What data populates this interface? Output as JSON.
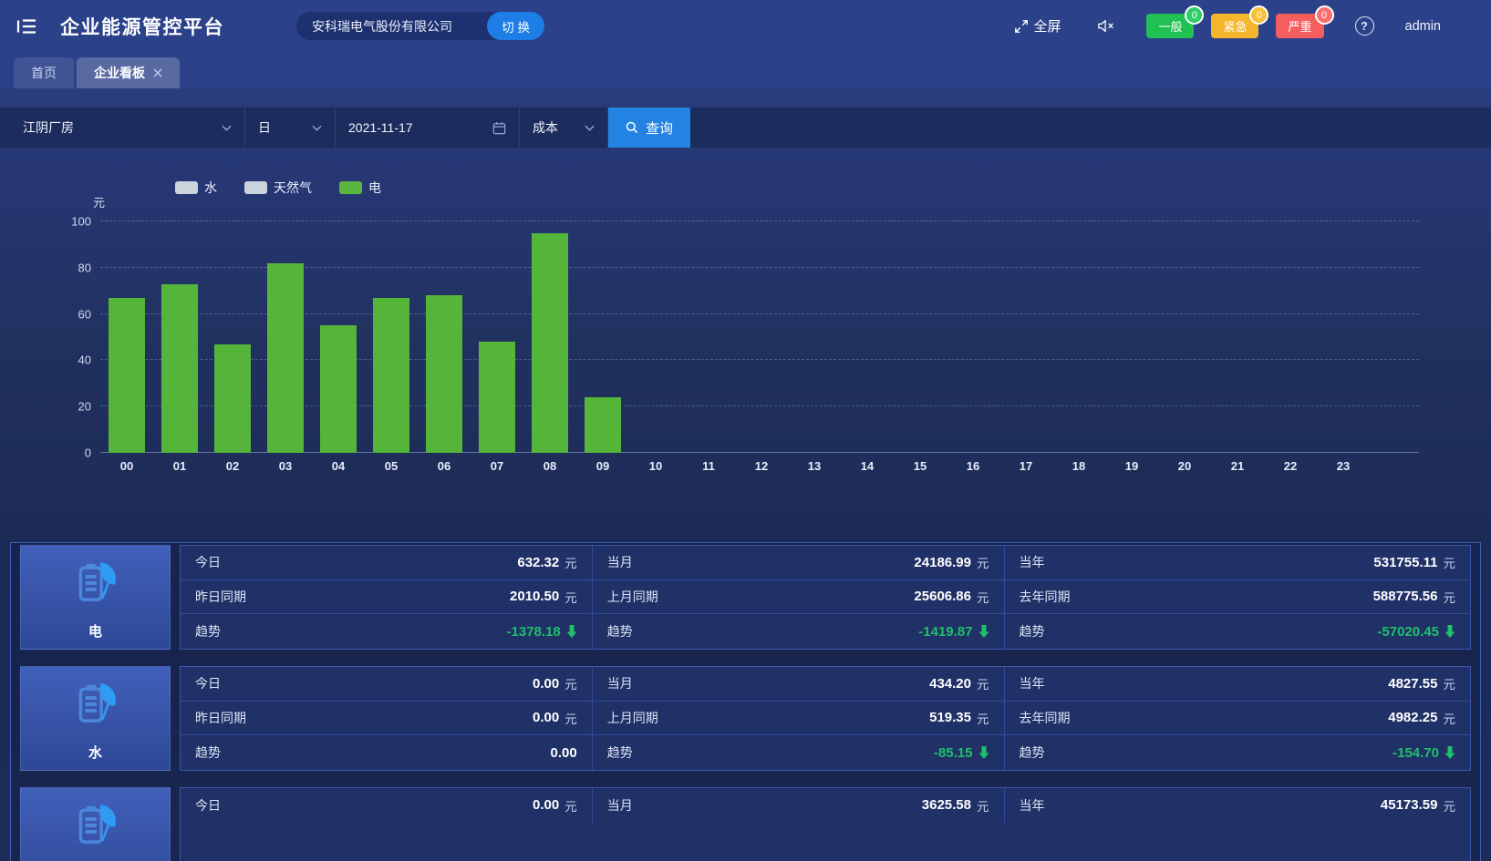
{
  "header": {
    "title": "企业能源管控平台",
    "company": "安科瑞电气股份有限公司",
    "switch_label": "切 换",
    "fullscreen_label": "全屏",
    "alarm_badges": [
      {
        "label": "一般",
        "count": "0",
        "color": "#21c052",
        "badge_color": "#2fcf66"
      },
      {
        "label": "紧急",
        "count": "0",
        "color": "#f5b52d",
        "badge_color": "#f7c235"
      },
      {
        "label": "严重",
        "count": "0",
        "color": "#f55e5e",
        "badge_color": "#fa6e6e"
      }
    ],
    "user": "admin"
  },
  "tabs": [
    {
      "label": "首页",
      "active": false,
      "closable": false
    },
    {
      "label": "企业看板",
      "active": true,
      "closable": true
    }
  ],
  "filters": {
    "site": "江阴厂房",
    "period": "日",
    "date": "2021-11-17",
    "metric": "成本",
    "search_label": "查询"
  },
  "chart_data": {
    "type": "bar",
    "title": "",
    "xlabel": "",
    "ylabel": "元",
    "ylim": [
      0,
      100
    ],
    "yticks": [
      0,
      20,
      40,
      60,
      80,
      100
    ],
    "grid": true,
    "legend_position": "top-left",
    "legend": [
      {
        "name": "水",
        "color": "#ccd3dc",
        "selected": false
      },
      {
        "name": "天然气",
        "color": "#ccd3dc",
        "selected": false
      },
      {
        "name": "电",
        "color": "#5cb63e",
        "selected": true
      }
    ],
    "categories": [
      "00",
      "01",
      "02",
      "03",
      "04",
      "05",
      "06",
      "07",
      "08",
      "09",
      "10",
      "11",
      "12",
      "13",
      "14",
      "15",
      "16",
      "17",
      "18",
      "19",
      "20",
      "21",
      "22",
      "23"
    ],
    "series": [
      {
        "name": "水",
        "selected": false
      },
      {
        "name": "天然气",
        "selected": false
      },
      {
        "name": "电",
        "selected": true,
        "values": [
          67,
          73,
          47,
          82,
          55,
          67,
          68,
          48,
          95,
          24,
          0,
          0,
          0,
          0,
          0,
          0,
          0,
          0,
          0,
          0,
          0,
          0,
          0,
          0
        ]
      }
    ],
    "bar_color": "#55b43a"
  },
  "cards": [
    {
      "name": "电",
      "rows": [
        [
          {
            "label": "今日",
            "value": "632.32",
            "unit": "元"
          },
          {
            "label": "当月",
            "value": "24186.99",
            "unit": "元"
          },
          {
            "label": "当年",
            "value": "531755.11",
            "unit": "元"
          }
        ],
        [
          {
            "label": "昨日同期",
            "value": "2010.50",
            "unit": "元"
          },
          {
            "label": "上月同期",
            "value": "25606.86",
            "unit": "元"
          },
          {
            "label": "去年同期",
            "value": "588775.56",
            "unit": "元"
          }
        ],
        [
          {
            "label": "趋势",
            "value": "-1378.18",
            "trend": "down"
          },
          {
            "label": "趋势",
            "value": "-1419.87",
            "trend": "down"
          },
          {
            "label": "趋势",
            "value": "-57020.45",
            "trend": "down"
          }
        ]
      ]
    },
    {
      "name": "水",
      "rows": [
        [
          {
            "label": "今日",
            "value": "0.00",
            "unit": "元"
          },
          {
            "label": "当月",
            "value": "434.20",
            "unit": "元"
          },
          {
            "label": "当年",
            "value": "4827.55",
            "unit": "元"
          }
        ],
        [
          {
            "label": "昨日同期",
            "value": "0.00",
            "unit": "元"
          },
          {
            "label": "上月同期",
            "value": "519.35",
            "unit": "元"
          },
          {
            "label": "去年同期",
            "value": "4982.25",
            "unit": "元"
          }
        ],
        [
          {
            "label": "趋势",
            "value": "0.00",
            "trend": "none"
          },
          {
            "label": "趋势",
            "value": "-85.15",
            "trend": "down"
          },
          {
            "label": "趋势",
            "value": "-154.70",
            "trend": "down"
          }
        ]
      ]
    },
    {
      "name": "",
      "rows": [
        [
          {
            "label": "今日",
            "value": "0.00",
            "unit": "元"
          },
          {
            "label": "当月",
            "value": "3625.58",
            "unit": "元"
          },
          {
            "label": "当年",
            "value": "45173.59",
            "unit": "元"
          }
        ]
      ]
    }
  ],
  "colors": {
    "header_bg": "#2b4189",
    "filter_bg": "#1c2c5d",
    "accent_blue": "#2383e2",
    "bar_green": "#55b43a",
    "trend_green": "#1ec06a",
    "legend_gray": "#ccd3dc",
    "card_bg": "#203167",
    "card_border": "#3a57a8"
  }
}
